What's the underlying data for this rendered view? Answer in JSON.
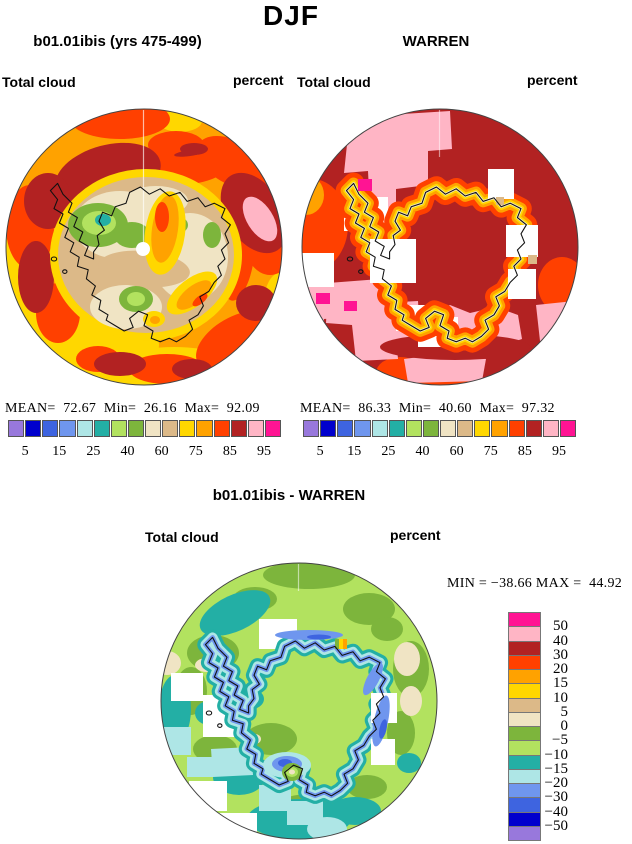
{
  "page": {
    "title": "DJF"
  },
  "panels": {
    "model": {
      "title": "b01.01ibis (yrs 475-499)",
      "field_label": "Total cloud",
      "units_label": "percent",
      "stats": "MEAN=  72.67  Min=  26.16  Max=  92.09"
    },
    "obs": {
      "title": "WARREN",
      "field_label": "Total cloud",
      "units_label": "percent",
      "stats": "MEAN=  86.33  Min=  40.60  Max=  97.32"
    },
    "diff": {
      "title": "b01.01ibis - WARREN",
      "field_label": "Total cloud",
      "units_label": "percent",
      "stats": "MIN = −38.66 MAX =  44.92"
    }
  },
  "palette": {
    "purple": "#9878DC",
    "darkblue": "#0000CD",
    "blue": "#3E64E0",
    "lightblue": "#6F96EE",
    "palecyan": "#AEE6E6",
    "teal": "#23AFA5",
    "lightgreen": "#B2E25F",
    "green": "#7DB53C",
    "beige": "#F0E4C4",
    "tan": "#DCB988",
    "yellow": "#FFD700",
    "orange": "#FFA200",
    "orangered": "#FF4000",
    "darkred": "#B22222",
    "pink": "#FFB5C5",
    "magenta": "#FF1493"
  },
  "colorbar": {
    "colors": [
      "#9878DC",
      "#0000CD",
      "#3E64E0",
      "#6F96EE",
      "#AEE6E6",
      "#23AFA5",
      "#B2E25F",
      "#7DB53C",
      "#F0E4C4",
      "#DCB988",
      "#FFD700",
      "#FFA200",
      "#FF4000",
      "#B22222",
      "#FFB5C5",
      "#FF1493"
    ],
    "tick_labels": [
      "5",
      "15",
      "25",
      "40",
      "60",
      "75",
      "85",
      "95"
    ],
    "tick_boundary_indices": [
      1,
      3,
      5,
      7,
      9,
      11,
      13,
      15
    ],
    "vertical_labels": [
      "50",
      "40",
      "30",
      "20",
      "15",
      "10",
      "5",
      "0",
      "−5",
      "−10",
      "−15",
      "−20",
      "−30",
      "−40",
      "−50"
    ]
  },
  "chart_data": [
    {
      "type": "heatmap",
      "title": "b01.01ibis (yrs 475-499)",
      "season": "DJF",
      "variable": "Total cloud",
      "units": "percent",
      "projection": "south-polar-stereographic",
      "stats": {
        "mean": 72.67,
        "min": 26.16,
        "max": 92.09
      },
      "contour_levels": [
        5,
        10,
        15,
        20,
        25,
        30,
        40,
        50,
        60,
        70,
        75,
        80,
        85,
        90,
        95
      ],
      "labeled_levels": [
        5,
        15,
        25,
        40,
        60,
        75,
        85,
        95
      ],
      "legend_position": "below"
    },
    {
      "type": "heatmap",
      "title": "WARREN",
      "season": "DJF",
      "variable": "Total cloud",
      "units": "percent",
      "projection": "south-polar-stereographic",
      "stats": {
        "mean": 86.33,
        "min": 40.6,
        "max": 97.32
      },
      "contour_levels": [
        5,
        10,
        15,
        20,
        25,
        30,
        40,
        50,
        60,
        70,
        75,
        80,
        85,
        90,
        95
      ],
      "labeled_levels": [
        5,
        15,
        25,
        40,
        60,
        75,
        85,
        95
      ],
      "legend_position": "below"
    },
    {
      "type": "heatmap",
      "title": "b01.01ibis - WARREN",
      "season": "DJF",
      "variable": "Total cloud",
      "units": "percent",
      "projection": "south-polar-stereographic",
      "stats": {
        "min": -38.66,
        "max": 44.92
      },
      "contour_levels": [
        -50,
        -40,
        -30,
        -20,
        -15,
        -10,
        -5,
        0,
        5,
        10,
        15,
        20,
        30,
        40,
        50
      ],
      "legend_position": "right-vertical"
    }
  ]
}
